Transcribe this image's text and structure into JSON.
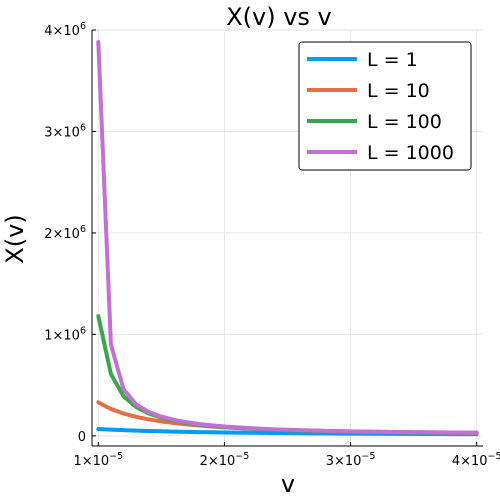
{
  "chart_data": {
    "type": "line",
    "title": "X(v) vs v",
    "xlabel": "v",
    "ylabel": "X(v)",
    "xlim": [
      9.5e-06,
      4.05e-05
    ],
    "ylim": [
      -100000,
      4000000
    ],
    "grid": true,
    "legend_position": "top-right",
    "x_ticks": [
      {
        "value": 1e-05,
        "base": "1×10",
        "exp": "−5"
      },
      {
        "value": 2e-05,
        "base": "2×10",
        "exp": "−5"
      },
      {
        "value": 3e-05,
        "base": "3×10",
        "exp": "−5"
      },
      {
        "value": 4e-05,
        "base": "4×10",
        "exp": "−5"
      }
    ],
    "y_ticks": [
      {
        "value": 0,
        "base": "0",
        "exp": ""
      },
      {
        "value": 1000000,
        "base": "1×10",
        "exp": "6"
      },
      {
        "value": 2000000,
        "base": "2×10",
        "exp": "6"
      },
      {
        "value": 3000000,
        "base": "3×10",
        "exp": "6"
      },
      {
        "value": 4000000,
        "base": "4×10",
        "exp": "6"
      }
    ],
    "x": [
      1e-05,
      1.1e-05,
      1.2e-05,
      1.3e-05,
      1.4e-05,
      1.5e-05,
      1.6e-05,
      1.7e-05,
      1.8e-05,
      1.9e-05,
      2e-05,
      2.1e-05,
      2.2e-05,
      2.3e-05,
      2.4e-05,
      2.5e-05,
      2.6e-05,
      2.7e-05,
      2.8e-05,
      2.9e-05,
      3e-05,
      3.1e-05,
      3.2e-05,
      3.3e-05,
      3.4e-05,
      3.5e-05,
      3.6e-05,
      3.7e-05,
      3.8e-05,
      3.9e-05,
      4e-05
    ],
    "series": [
      {
        "name": "L = 1",
        "color": "#009af9",
        "values": [
          67000,
          61000,
          56000,
          52000,
          48000,
          45000,
          42000,
          39000,
          37000,
          35000,
          33500,
          32000,
          30500,
          29000,
          28000,
          27000,
          26000,
          25000,
          24000,
          23000,
          22500,
          21700,
          21000,
          20300,
          19700,
          19200,
          18600,
          18100,
          17600,
          17200,
          16800
        ]
      },
      {
        "name": "L = 10",
        "color": "#e26f46",
        "values": [
          330000,
          265000,
          220000,
          188000,
          162000,
          142000,
          126000,
          113000,
          102000,
          92000,
          84000,
          77000,
          71000,
          66000,
          61000,
          57000,
          54000,
          51000,
          48000,
          45500,
          43000,
          41000,
          39000,
          37000,
          35500,
          34000,
          32500,
          31000,
          30000,
          29000,
          28000
        ]
      },
      {
        "name": "L = 100",
        "color": "#3da44d",
        "values": [
          1180000,
          610000,
          390000,
          285000,
          220000,
          180000,
          150000,
          128000,
          111000,
          98000,
          87000,
          79000,
          72000,
          66000,
          61000,
          57000,
          53500,
          50500,
          48000,
          45500,
          43500,
          41500,
          39500,
          38000,
          36500,
          35000,
          34000,
          33000,
          32000,
          31000,
          30000
        ]
      },
      {
        "name": "L = 1000",
        "color": "#c271d2",
        "values": [
          3880000,
          900000,
          460000,
          310000,
          235000,
          190000,
          158000,
          135000,
          117000,
          103000,
          92000,
          83000,
          76000,
          70000,
          64000,
          60000,
          56000,
          52500,
          49500,
          47000,
          44500,
          42500,
          40500,
          39000,
          37500,
          36000,
          35000,
          34000,
          33000,
          32000,
          31000
        ]
      }
    ]
  }
}
